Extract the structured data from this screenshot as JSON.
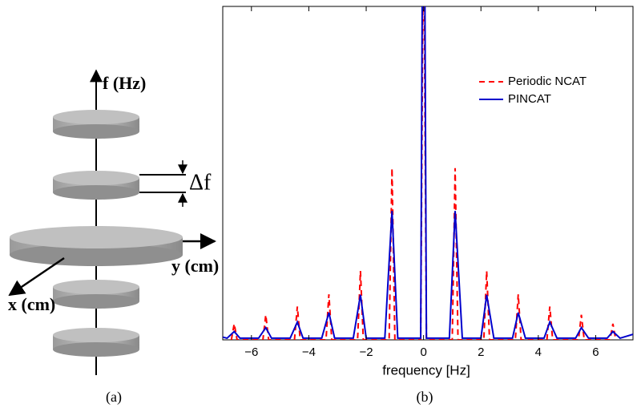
{
  "diagram": {
    "f_axis": "f (Hz)",
    "delta": "Δf",
    "y_axis": "y (cm)",
    "x_axis": "x (cm)",
    "caption": "(a)"
  },
  "chart_data": {
    "type": "line",
    "caption": "(b)",
    "xlabel": "frequency [Hz]",
    "xlim": [
      -7,
      7.3
    ],
    "ylim": [
      0,
      6
    ],
    "xticks": [
      {
        "value": -6,
        "label": "−6"
      },
      {
        "value": -4,
        "label": "−4"
      },
      {
        "value": -2,
        "label": "−2"
      },
      0,
      2,
      4,
      6
    ],
    "legend": "upper-right",
    "series": [
      {
        "name": "Periodic NCAT",
        "color": "#ff0000",
        "dash": true,
        "x": [
          -6.7,
          -6.6,
          -6.5,
          -5.6,
          -5.5,
          -5.4,
          -4.5,
          -4.4,
          -4.3,
          -3.4,
          -3.3,
          -3.2,
          -2.3,
          -2.2,
          -2.1,
          -1.2,
          -1.1,
          -1.0,
          -0.1,
          0,
          0.1,
          1.0,
          1.1,
          1.2,
          2.1,
          2.2,
          2.3,
          3.2,
          3.3,
          3.4,
          4.3,
          4.4,
          4.5,
          5.4,
          5.5,
          5.6,
          6.5,
          6.6,
          6.7
        ],
        "values": [
          0,
          0.29,
          0,
          0,
          0.45,
          0,
          0,
          0.6,
          0,
          0,
          0.82,
          0,
          0,
          1.24,
          0,
          0,
          3.09,
          0,
          0,
          8,
          0,
          0,
          3.09,
          0,
          0,
          1.24,
          0,
          0,
          0.82,
          0,
          0,
          0.6,
          0,
          0,
          0.45,
          0,
          0,
          0.29,
          0
        ]
      },
      {
        "name": "PINCAT",
        "color": "#0000cc",
        "dash": false,
        "x": [
          -7,
          -6.85,
          -6.6,
          -6.4,
          -5.75,
          -5.5,
          -5.3,
          -4.65,
          -4.4,
          -4.2,
          -3.55,
          -3.3,
          -3.1,
          -2.45,
          -2.2,
          -2.0,
          -1.35,
          -1.1,
          -0.9,
          -0.1,
          -0.03,
          0.03,
          0.1,
          0.9,
          1.1,
          1.35,
          2.0,
          2.2,
          2.45,
          3.1,
          3.3,
          3.55,
          4.2,
          4.4,
          4.65,
          5.3,
          5.5,
          5.75,
          6.4,
          6.6,
          6.85,
          7.3
        ],
        "values": [
          0.05,
          0.03,
          0.15,
          0.03,
          0.03,
          0.22,
          0.03,
          0.03,
          0.32,
          0.03,
          0.03,
          0.49,
          0.03,
          0.03,
          0.81,
          0.03,
          0.03,
          2.32,
          0.03,
          0.03,
          8,
          8,
          0.03,
          0.03,
          2.32,
          0.03,
          0.03,
          0.81,
          0.03,
          0.03,
          0.49,
          0.03,
          0.03,
          0.32,
          0.03,
          0.03,
          0.22,
          0.03,
          0.03,
          0.15,
          0.03,
          0.1
        ]
      }
    ]
  }
}
